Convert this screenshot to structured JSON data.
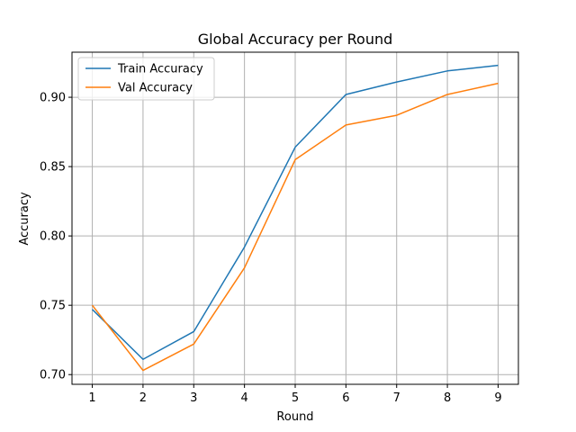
{
  "chart_data": {
    "type": "line",
    "title": "Global Accuracy per Round",
    "xlabel": "Round",
    "ylabel": "Accuracy",
    "x": [
      1,
      2,
      3,
      4,
      5,
      6,
      7,
      8,
      9
    ],
    "xticks": [
      "1",
      "2",
      "3",
      "4",
      "5",
      "6",
      "7",
      "8",
      "9"
    ],
    "yticks": [
      "0.70",
      "0.75",
      "0.80",
      "0.85",
      "0.90"
    ],
    "ytick_values": [
      0.7,
      0.75,
      0.8,
      0.85,
      0.9
    ],
    "xlim": [
      0.6,
      9.4
    ],
    "ylim": [
      0.693,
      0.9325
    ],
    "grid": true,
    "legend_position": "upper-left",
    "series": [
      {
        "name": "Train Accuracy",
        "color": "#1f77b4",
        "values": [
          0.747,
          0.711,
          0.731,
          0.792,
          0.864,
          0.902,
          0.911,
          0.919,
          0.923
        ]
      },
      {
        "name": "Val Accuracy",
        "color": "#ff7f0e",
        "values": [
          0.75,
          0.703,
          0.722,
          0.777,
          0.855,
          0.88,
          0.887,
          0.902,
          0.91
        ]
      }
    ]
  }
}
